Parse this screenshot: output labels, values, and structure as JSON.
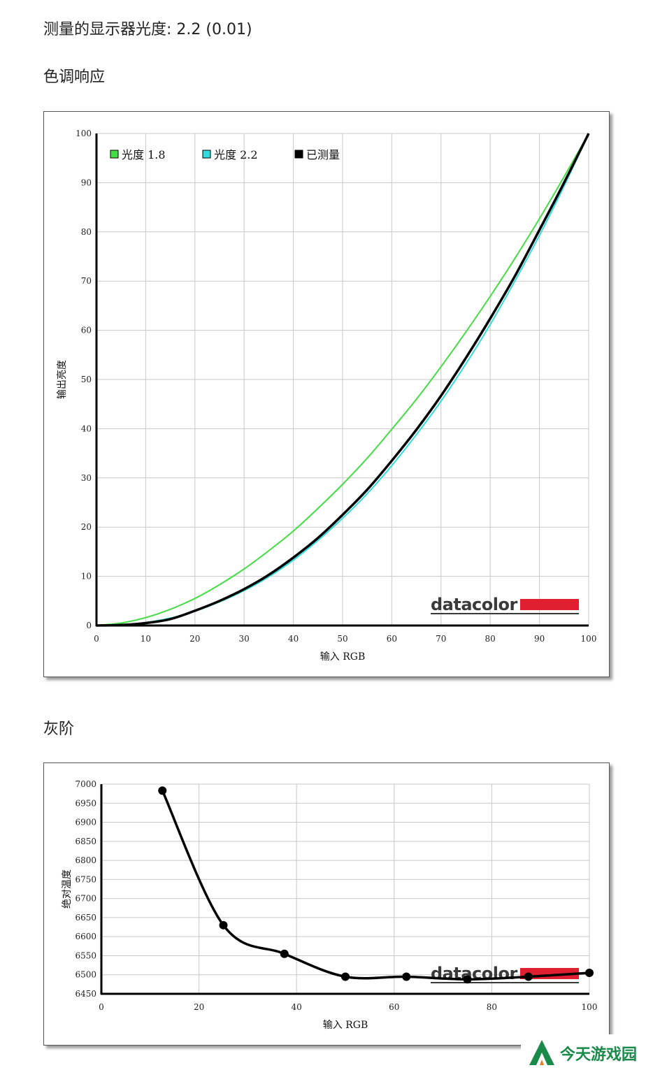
{
  "gamma_summary": "测量的显示器光度: 2.2 (0.01)",
  "sections": {
    "tone_response": "色调响应",
    "grayscale": "灰阶"
  },
  "brand": {
    "name": "datacolor",
    "color": "#e02030"
  },
  "watermark": {
    "text": "今天游戏园",
    "icon": "tree-logo-icon",
    "color": "#1a8a4a"
  },
  "chart_data": [
    {
      "type": "line",
      "xlabel": "输入 RGB",
      "ylabel": "输出亮度",
      "xlim": [
        0,
        100
      ],
      "ylim": [
        0,
        100
      ],
      "xticks": [
        0,
        10,
        20,
        30,
        40,
        50,
        60,
        70,
        80,
        90,
        100
      ],
      "yticks": [
        0,
        10,
        20,
        30,
        40,
        50,
        60,
        70,
        80,
        90,
        100
      ],
      "grid": true,
      "legend_position": "top-left",
      "series": [
        {
          "name": "光度 1.8",
          "color": "#44dd44",
          "x": [
            0,
            5,
            10,
            15,
            20,
            25,
            30,
            35,
            40,
            45,
            50,
            55,
            60,
            65,
            70,
            75,
            80,
            85,
            90,
            95,
            100
          ],
          "y": [
            0,
            0.5,
            1.6,
            3.3,
            5.5,
            8.3,
            11.5,
            15.2,
            19.2,
            23.8,
            28.7,
            34.0,
            39.9,
            46.0,
            52.6,
            59.6,
            66.9,
            74.6,
            82.7,
            91.2,
            100
          ]
        },
        {
          "name": "光度 2.2",
          "color": "#33dddd",
          "x": [
            0,
            5,
            10,
            15,
            20,
            25,
            30,
            35,
            40,
            45,
            50,
            55,
            60,
            65,
            70,
            75,
            80,
            85,
            90,
            95,
            100
          ],
          "y": [
            0,
            0.1,
            0.6,
            1.5,
            2.9,
            4.8,
            7.1,
            9.9,
            13.3,
            17.3,
            21.8,
            26.8,
            32.5,
            38.8,
            45.6,
            53.1,
            61.2,
            70.0,
            79.3,
            89.3,
            100
          ]
        },
        {
          "name": "已测量",
          "color": "#000000",
          "x": [
            0,
            5,
            10,
            15,
            20,
            25,
            30,
            35,
            40,
            45,
            50,
            55,
            60,
            65,
            70,
            75,
            80,
            85,
            90,
            95,
            100
          ],
          "y": [
            0,
            0.1,
            0.5,
            1.3,
            3.0,
            5.0,
            7.4,
            10.3,
            13.8,
            17.8,
            22.5,
            27.6,
            33.5,
            39.8,
            46.7,
            54.3,
            62.4,
            71.0,
            80.4,
            90.0,
            100
          ]
        }
      ]
    },
    {
      "type": "line",
      "xlabel": "输入 RGB",
      "ylabel": "绝对温度",
      "xlim": [
        0,
        100
      ],
      "ylim": [
        6450,
        7000
      ],
      "xticks": [
        0,
        20,
        40,
        60,
        80,
        100
      ],
      "yticks": [
        6450,
        6500,
        6550,
        6600,
        6650,
        6700,
        6750,
        6800,
        6850,
        6900,
        6950,
        7000
      ],
      "grid": true,
      "series": [
        {
          "color": "#000000",
          "x": [
            12.5,
            25,
            37.5,
            50,
            62.5,
            75,
            87.5,
            100
          ],
          "y": [
            6983,
            6630,
            6555,
            6495,
            6495,
            6488,
            6495,
            6505
          ]
        }
      ]
    }
  ]
}
